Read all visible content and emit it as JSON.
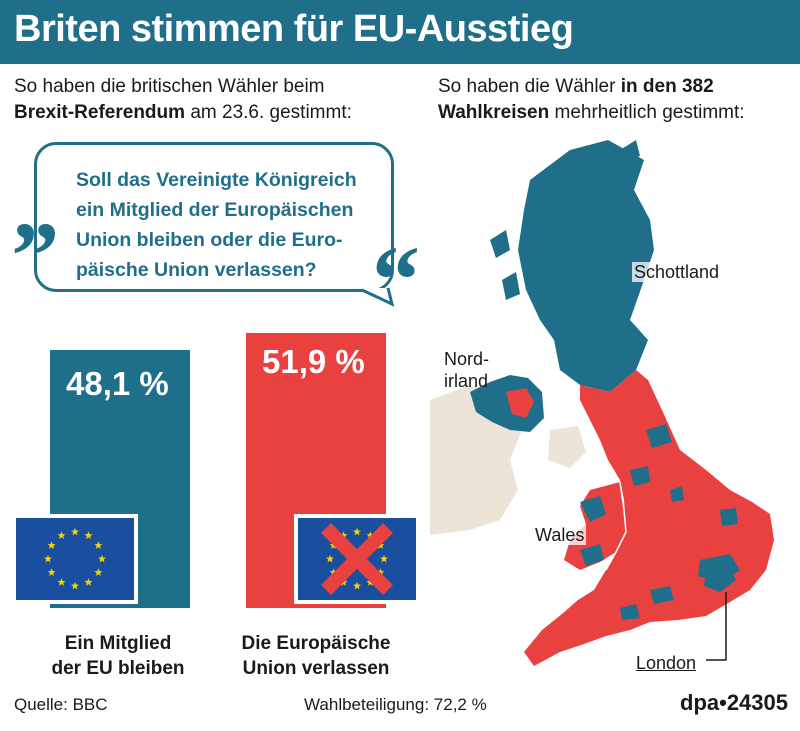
{
  "header": {
    "title": "Briten stimmen für EU-Ausstieg"
  },
  "intro_left": {
    "line1": "So haben die britischen Wähler beim",
    "bold": "Brexit-Referendum",
    "rest": " am 23.6. gestimmt:"
  },
  "intro_right": {
    "line1_plain": "So haben die Wähler ",
    "line1_bold": "in den 382",
    "line2_bold": "Wahlkreisen",
    "line2_plain": " mehrheitlich gestimmt:"
  },
  "question": {
    "line1": "Soll das Vereinigte Königreich",
    "line2": "ein Mitglied der Europäischen",
    "line3": "Union bleiben oder die Euro-",
    "line4": "päische Union verlassen?",
    "open_quote": "„",
    "close_quote": "“"
  },
  "chart_data": {
    "type": "bar",
    "title": "Briten stimmen für EU-Ausstieg",
    "categories": [
      "Ein Mitglied der EU bleiben",
      "Die Europäische Union verlassen"
    ],
    "values": [
      48.1,
      51.9
    ],
    "unit": "%",
    "value_labels": [
      "48,1 %",
      "51,9 %"
    ],
    "colors": [
      "#1f6f8b",
      "#e8413f"
    ],
    "ylim": [
      0,
      100
    ]
  },
  "bars": {
    "remain": {
      "value_text": "48,1 %",
      "label_line1": "Ein Mitglied",
      "label_line2": "der EU bleiben"
    },
    "leave": {
      "value_text": "51,9 %",
      "label_line1": "Die Europäische",
      "label_line2": "Union verlassen"
    }
  },
  "map": {
    "regions": {
      "scotland": "Schottland",
      "nireland_line1": "Nord-",
      "nireland_line2": "irland",
      "wales": "Wales",
      "london": "London"
    },
    "colors": {
      "remain": "#1f6f8b",
      "leave": "#e8413f",
      "ireland": "#ede4d8"
    }
  },
  "footer": {
    "source": "Quelle: BBC",
    "turnout": "Wahlbeteiligung: 72,2 %",
    "agency": "dpa•24305"
  }
}
